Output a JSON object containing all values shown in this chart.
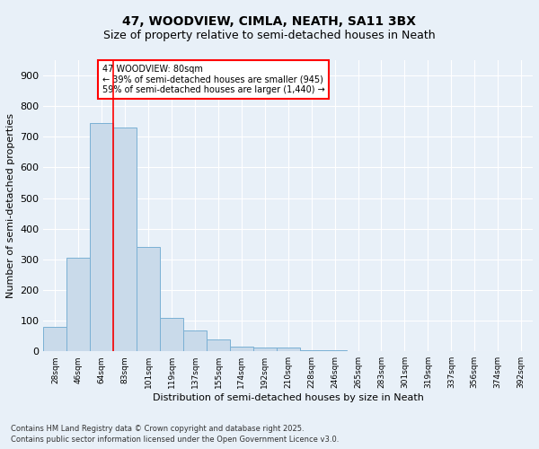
{
  "title1": "47, WOODVIEW, CIMLA, NEATH, SA11 3BX",
  "title2": "Size of property relative to semi-detached houses in Neath",
  "xlabel": "Distribution of semi-detached houses by size in Neath",
  "ylabel": "Number of semi-detached properties",
  "footnote1": "Contains HM Land Registry data © Crown copyright and database right 2025.",
  "footnote2": "Contains public sector information licensed under the Open Government Licence v3.0.",
  "categories": [
    "28sqm",
    "46sqm",
    "64sqm",
    "83sqm",
    "101sqm",
    "119sqm",
    "137sqm",
    "155sqm",
    "174sqm",
    "192sqm",
    "210sqm",
    "228sqm",
    "246sqm",
    "265sqm",
    "283sqm",
    "301sqm",
    "319sqm",
    "337sqm",
    "356sqm",
    "374sqm",
    "392sqm"
  ],
  "values": [
    80,
    305,
    745,
    730,
    340,
    110,
    67,
    40,
    15,
    12,
    12,
    5,
    3,
    0,
    0,
    0,
    0,
    0,
    0,
    0,
    0
  ],
  "bar_color": "#c9daea",
  "bar_edge_color": "#7ab0d4",
  "annotation_text_title": "47 WOODVIEW: 80sqm",
  "annotation_text_smaller": "← 39% of semi-detached houses are smaller (945)",
  "annotation_text_larger": "59% of semi-detached houses are larger (1,440) →",
  "vline_x": 2.5,
  "ylim": [
    0,
    950
  ],
  "yticks": [
    0,
    100,
    200,
    300,
    400,
    500,
    600,
    700,
    800,
    900
  ],
  "background_color": "#e8f0f8",
  "grid_color": "#ffffff",
  "title1_fontsize": 10,
  "title2_fontsize": 9,
  "xlabel_fontsize": 8,
  "ylabel_fontsize": 8,
  "xtick_fontsize": 6.5,
  "ytick_fontsize": 8,
  "ann_fontsize": 7,
  "footnote_fontsize": 6
}
